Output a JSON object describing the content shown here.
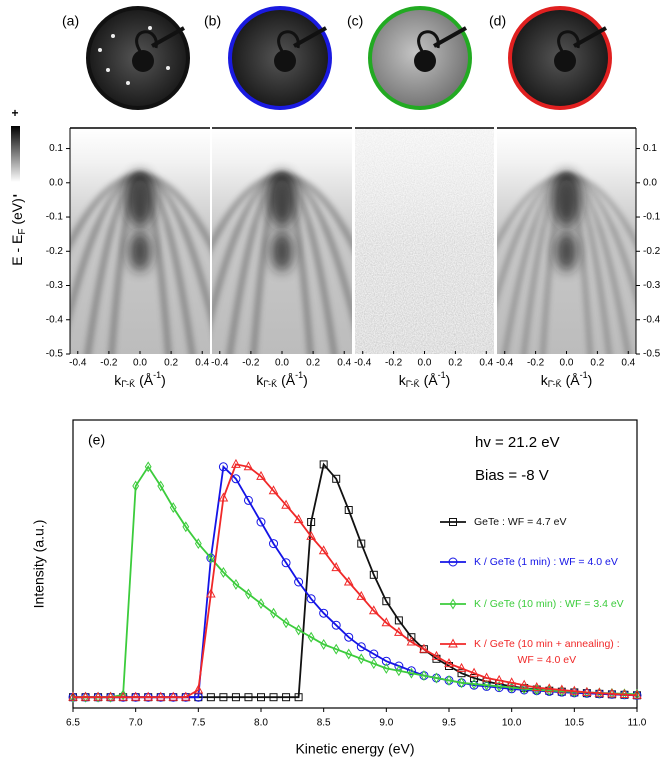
{
  "chart_data": [
    {
      "type": "image",
      "label": "(a)",
      "ring_color": "#111111",
      "xlabel": [
        "k",
        "Γ̄-K̄",
        " (Å",
        "-1",
        ")"
      ],
      "ylabel": [
        "E - E",
        "F",
        " (eV)"
      ],
      "colorbar_labels": [
        "+",
        "-"
      ],
      "xlim": [
        -0.45,
        0.45
      ],
      "xticks": [
        -0.4,
        -0.2,
        {
          "value": 0,
          "label": "0.0"
        },
        0.2,
        0.4
      ],
      "ylim": [
        -0.5,
        0.16
      ],
      "yticks": [
        0.1,
        {
          "value": 0,
          "label": "0.0"
        },
        -0.1,
        -0.2,
        -0.3,
        -0.4,
        -0.5
      ]
    },
    {
      "type": "image",
      "label": "(b)",
      "ring_color": "#1a1ae0",
      "xlabel": [
        "k",
        "Γ̄-K̄",
        " (Å",
        "-1",
        ")"
      ],
      "xlim": [
        -0.45,
        0.45
      ],
      "xticks": [
        -0.4,
        -0.2,
        {
          "value": 0,
          "label": "0.0"
        },
        0.2,
        0.4
      ],
      "ylim": [
        -0.5,
        0.16
      ]
    },
    {
      "type": "image",
      "label": "(c)",
      "ring_color": "#22aa22",
      "xlabel": [
        "k",
        "Γ̄-K̄",
        " (Å",
        "-1",
        ")"
      ],
      "xlim": [
        -0.45,
        0.45
      ],
      "xticks": [
        -0.4,
        -0.2,
        {
          "value": 0,
          "label": "0.0"
        },
        0.2,
        0.4
      ],
      "ylim": [
        -0.5,
        0.16
      ]
    },
    {
      "type": "image",
      "label": "(d)",
      "ring_color": "#e02020",
      "xlabel": [
        "k",
        "Γ̄-K̄",
        " (Å",
        "-1",
        ")"
      ],
      "xlim": [
        -0.45,
        0.45
      ],
      "xticks": [
        -0.4,
        -0.2,
        {
          "value": 0,
          "label": "0.0"
        },
        0.2,
        0.4
      ],
      "ylim": [
        -0.5,
        0.16
      ],
      "yticks": [
        0.1,
        {
          "value": 0,
          "label": "0.0"
        },
        -0.1,
        -0.2,
        -0.3,
        -0.4,
        -0.5
      ]
    },
    {
      "type": "line",
      "label": "(e)",
      "annotations": [
        "hv = 21.2 eV",
        "Bias = -8 V"
      ],
      "xlabel": "Kinetic energy (eV)",
      "ylabel": "Intensity (a.u.)",
      "xlim": [
        6.5,
        11.0
      ],
      "ylim": [
        -0.025,
        1.175
      ],
      "xticks": [
        6.5,
        {
          "value": 7,
          "label": "7.0"
        },
        7.5,
        {
          "value": 8,
          "label": "8.0"
        },
        8.5,
        {
          "value": 9,
          "label": "9.0"
        },
        9.5,
        {
          "value": 10,
          "label": "10.0"
        },
        10.5,
        {
          "value": 11,
          "label": "11.0"
        }
      ],
      "x": [
        6.5,
        6.6,
        6.7,
        6.8,
        6.9,
        7.0,
        7.1,
        7.2,
        7.3,
        7.4,
        7.5,
        7.6,
        7.7,
        7.8,
        7.9,
        8.0,
        8.1,
        8.2,
        8.3,
        8.4,
        8.5,
        8.6,
        8.7,
        8.8,
        8.9,
        9.0,
        9.1,
        9.2,
        9.3,
        9.4,
        9.5,
        9.6,
        9.7,
        9.8,
        9.9,
        10.0,
        10.1,
        10.2,
        10.3,
        10.4,
        10.5,
        10.6,
        10.7,
        10.8,
        10.9,
        11.0
      ],
      "series": [
        {
          "name": "GeTe : WF = 4.7 eV",
          "color": "#111111",
          "marker": "square",
          "values": [
            0.02,
            0.02,
            0.02,
            0.02,
            0.02,
            0.02,
            0.02,
            0.02,
            0.02,
            0.02,
            0.02,
            0.02,
            0.02,
            0.02,
            0.02,
            0.02,
            0.02,
            0.02,
            0.02,
            0.75,
            0.99,
            0.93,
            0.8,
            0.66,
            0.53,
            0.42,
            0.34,
            0.27,
            0.22,
            0.18,
            0.15,
            0.12,
            0.1,
            0.085,
            0.075,
            0.065,
            0.058,
            0.052,
            0.047,
            0.043,
            0.04,
            0.037,
            0.034,
            0.032,
            0.03,
            0.028
          ]
        },
        {
          "name": "K / GeTe (1 min) : WF = 4.0 eV",
          "color": "#1414e6",
          "marker": "circle",
          "values": [
            0.02,
            0.02,
            0.02,
            0.02,
            0.02,
            0.02,
            0.02,
            0.02,
            0.02,
            0.02,
            0.02,
            0.6,
            0.98,
            0.93,
            0.84,
            0.75,
            0.66,
            0.58,
            0.5,
            0.43,
            0.37,
            0.32,
            0.27,
            0.23,
            0.2,
            0.17,
            0.15,
            0.13,
            0.11,
            0.1,
            0.09,
            0.08,
            0.07,
            0.065,
            0.06,
            0.055,
            0.05,
            0.047,
            0.044,
            0.041,
            0.038,
            0.036,
            0.034,
            0.032,
            0.03,
            0.028
          ]
        },
        {
          "name": "K / GeTe (10 min) : WF = 3.4 eV",
          "color": "#3ccc3c",
          "marker": "diamond",
          "values": [
            0.02,
            0.02,
            0.02,
            0.02,
            0.03,
            0.9,
            0.98,
            0.9,
            0.81,
            0.73,
            0.66,
            0.6,
            0.54,
            0.49,
            0.45,
            0.41,
            0.37,
            0.33,
            0.3,
            0.27,
            0.24,
            0.22,
            0.2,
            0.18,
            0.16,
            0.14,
            0.13,
            0.12,
            0.11,
            0.1,
            0.09,
            0.08,
            0.075,
            0.07,
            0.065,
            0.06,
            0.055,
            0.05,
            0.048,
            0.045,
            0.042,
            0.04,
            0.038,
            0.036,
            0.034,
            0.032
          ]
        },
        {
          "name": "K / GeTe (10 min + annealing) :\nWF = 4.0 eV",
          "color": "#f02828",
          "marker": "triangle",
          "values": [
            0.02,
            0.02,
            0.02,
            0.02,
            0.02,
            0.02,
            0.02,
            0.02,
            0.02,
            0.02,
            0.05,
            0.45,
            0.85,
            0.99,
            0.98,
            0.94,
            0.88,
            0.82,
            0.76,
            0.69,
            0.63,
            0.56,
            0.5,
            0.44,
            0.38,
            0.33,
            0.29,
            0.25,
            0.22,
            0.19,
            0.16,
            0.14,
            0.12,
            0.1,
            0.09,
            0.08,
            0.07,
            0.06,
            0.055,
            0.05,
            0.045,
            0.04,
            0.037,
            0.034,
            0.031,
            0.028
          ]
        }
      ]
    }
  ]
}
